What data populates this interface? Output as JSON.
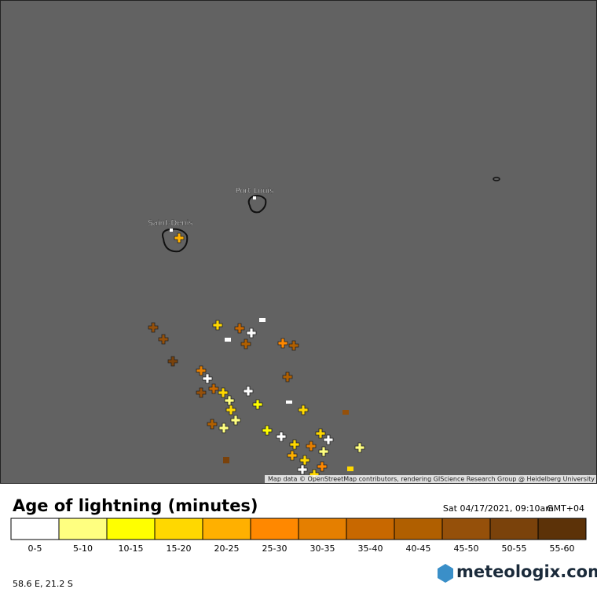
{
  "map": {
    "places": [
      {
        "label": "Port Louis"
      },
      {
        "label": "Saint-Denis"
      }
    ],
    "attribution": "Map data © OpenStreetMap contributors, rendering GIScience Research Group @ Heidelberg University"
  },
  "legend": {
    "title": "Age of lightning (minutes)",
    "timestamp": "Sat 04/17/2021, 09:10am",
    "timezone": "GMT+04",
    "bins": [
      {
        "label": "0-5",
        "color": "#ffffff"
      },
      {
        "label": "5-10",
        "color": "#ffff80"
      },
      {
        "label": "10-15",
        "color": "#ffff00"
      },
      {
        "label": "15-20",
        "color": "#ffd800"
      },
      {
        "label": "20-25",
        "color": "#ffb000"
      },
      {
        "label": "25-30",
        "color": "#ff8800"
      },
      {
        "label": "30-35",
        "color": "#e57f00"
      },
      {
        "label": "35-40",
        "color": "#c86800"
      },
      {
        "label": "40-45",
        "color": "#b05f00"
      },
      {
        "label": "45-50",
        "color": "#95500a"
      },
      {
        "label": "50-55",
        "color": "#7a420b"
      },
      {
        "label": "55-60",
        "color": "#5c3208"
      }
    ]
  },
  "footer": {
    "coordinates": "58.6 E, 21.2 S",
    "brand": "meteologix.com"
  }
}
